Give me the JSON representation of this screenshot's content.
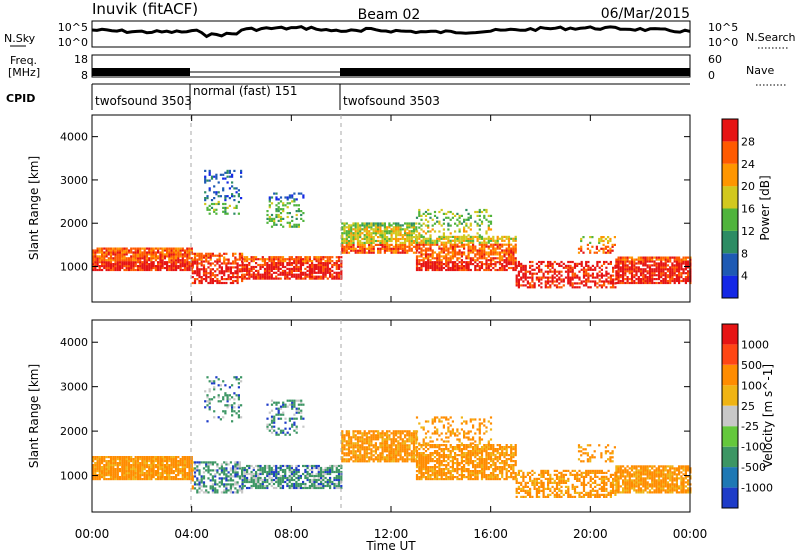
{
  "header": {
    "station": "Inuvik (fitACF)",
    "beam": "Beam 02",
    "date": "06/Mar/2015"
  },
  "strips": {
    "nsky": {
      "label": "N.Sky",
      "ticks": [
        "10^5",
        "10^0"
      ],
      "right_label": "N.Search",
      "right_ticks": [
        "10^5",
        "10^0"
      ]
    },
    "freq": {
      "label_lines": [
        "Freq.",
        "[MHz]"
      ],
      "ticks": [
        "18",
        "8"
      ],
      "right_label": "Nave",
      "right_ticks": [
        "60",
        "0"
      ]
    },
    "cpid": {
      "label": "CPID",
      "segments": [
        {
          "name": "twofsound 3503",
          "start": 0,
          "end": 4
        },
        {
          "name": "normal (fast) 151",
          "start": 4,
          "end": 10
        },
        {
          "name": "twofsound 3503",
          "start": 10,
          "end": 24
        }
      ]
    }
  },
  "chart_data": [
    {
      "type": "heatmap",
      "title": "",
      "xlabel": "Time UT",
      "ylabel": "Slant Range [km]",
      "xlim": [
        0,
        24
      ],
      "ylim": [
        180,
        4500
      ],
      "x_ticks": [
        "00:00",
        "04:00",
        "08:00",
        "12:00",
        "16:00",
        "20:00",
        "00:00"
      ],
      "y_ticks": [
        1000,
        2000,
        3000,
        4000
      ],
      "colorbar": {
        "label": "Power [dB]",
        "ticks": [
          4,
          8,
          12,
          16,
          20,
          24,
          28
        ],
        "colors": [
          "#1428e6",
          "#1e5ab4",
          "#2d8c64",
          "#50b43c",
          "#d2c81e",
          "#ff9600",
          "#ff5a00",
          "#e61414"
        ]
      }
    },
    {
      "type": "heatmap",
      "title": "",
      "xlabel": "Time UT",
      "ylabel": "Slant Range [km]",
      "xlim": [
        0,
        24
      ],
      "ylim": [
        180,
        4500
      ],
      "x_ticks": [
        "00:00",
        "04:00",
        "08:00",
        "12:00",
        "16:00",
        "20:00",
        "00:00"
      ],
      "y_ticks": [
        1000,
        2000,
        3000,
        4000
      ],
      "colorbar": {
        "label": "Velocity [m s^-1]",
        "ticks": [
          "1000",
          "500",
          "100",
          "25",
          "-25",
          "-100",
          "-500",
          "-1000"
        ],
        "colors": [
          "#1e3cc8",
          "#1e78b4",
          "#3c9664",
          "#64c83c",
          "#c8c8c8",
          "#f0b414",
          "#ff8c00",
          "#ff4614",
          "#e61414"
        ]
      }
    }
  ]
}
